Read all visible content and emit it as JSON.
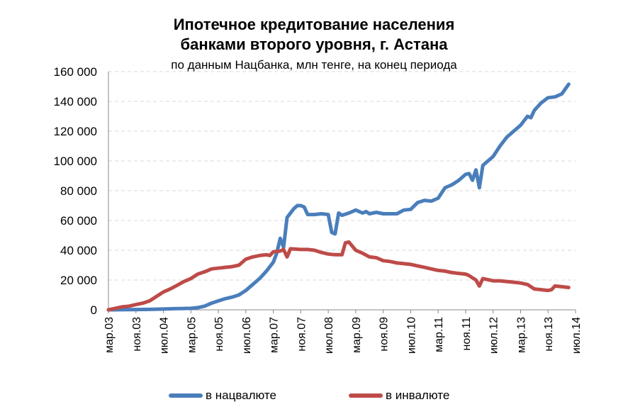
{
  "chart_data": {
    "type": "line",
    "title_line1": "Ипотечное кредитование населения",
    "title_line2": "банками второго уровня, г. Астана",
    "subtitle": "по данным Нацбанка, млн тенге, на конец периода",
    "xlabel": "",
    "ylabel": "",
    "ylim": [
      0,
      160000
    ],
    "yticks": [
      0,
      20000,
      40000,
      60000,
      80000,
      100000,
      120000,
      140000,
      160000
    ],
    "ytick_labels": [
      "0",
      "20 000",
      "40 000",
      "60 000",
      "80 000",
      "100 000",
      "120 000",
      "140 000",
      "160 000"
    ],
    "x_range": [
      0,
      136
    ],
    "xtick_positions": [
      0,
      8,
      16,
      24,
      32,
      40,
      48,
      56,
      64,
      72,
      80,
      88,
      96,
      104,
      112,
      120,
      128,
      136
    ],
    "xtick_labels": [
      "мар.03",
      "ноя.03",
      "июл.04",
      "мар.05",
      "ноя.05",
      "июл.06",
      "мар.07",
      "ноя.07",
      "июл.08",
      "мар.09",
      "ноя.09",
      "июл.10",
      "мар.11",
      "ноя.11",
      "июл.12",
      "мар.13",
      "ноя.13",
      "июл.14"
    ],
    "grid": true,
    "series": [
      {
        "name": "в нацвалюте",
        "color": "#4A7EBB",
        "points": [
          [
            0,
            0
          ],
          [
            8,
            200
          ],
          [
            12,
            300
          ],
          [
            16,
            500
          ],
          [
            20,
            800
          ],
          [
            24,
            1000
          ],
          [
            26,
            1500
          ],
          [
            28,
            2500
          ],
          [
            30,
            4500
          ],
          [
            32,
            6000
          ],
          [
            34,
            7500
          ],
          [
            36,
            8500
          ],
          [
            38,
            10000
          ],
          [
            40,
            13000
          ],
          [
            42,
            17000
          ],
          [
            44,
            21000
          ],
          [
            46,
            26000
          ],
          [
            48,
            32000
          ],
          [
            49,
            38000
          ],
          [
            50,
            48000
          ],
          [
            51,
            42000
          ],
          [
            52,
            62000
          ],
          [
            54,
            68000
          ],
          [
            55,
            70000
          ],
          [
            56,
            70000
          ],
          [
            57,
            69000
          ],
          [
            58,
            64000
          ],
          [
            60,
            64000
          ],
          [
            62,
            64500
          ],
          [
            64,
            64000
          ],
          [
            65,
            52000
          ],
          [
            66,
            51000
          ],
          [
            67,
            65000
          ],
          [
            68,
            63500
          ],
          [
            70,
            65000
          ],
          [
            72,
            67000
          ],
          [
            74,
            65000
          ],
          [
            75,
            66000
          ],
          [
            76,
            64500
          ],
          [
            78,
            65500
          ],
          [
            80,
            64500
          ],
          [
            82,
            64500
          ],
          [
            84,
            64500
          ],
          [
            86,
            67000
          ],
          [
            88,
            67500
          ],
          [
            90,
            72000
          ],
          [
            92,
            73500
          ],
          [
            94,
            73000
          ],
          [
            96,
            75000
          ],
          [
            98,
            82000
          ],
          [
            100,
            84000
          ],
          [
            102,
            87000
          ],
          [
            104,
            91000
          ],
          [
            105,
            91500
          ],
          [
            106,
            87000
          ],
          [
            107,
            94000
          ],
          [
            108,
            82000
          ],
          [
            109,
            97000
          ],
          [
            112,
            103000
          ],
          [
            114,
            110000
          ],
          [
            116,
            116000
          ],
          [
            118,
            120000
          ],
          [
            120,
            124000
          ],
          [
            122,
            130000
          ],
          [
            123,
            129000
          ],
          [
            124,
            134000
          ],
          [
            126,
            139000
          ],
          [
            128,
            142500
          ],
          [
            130,
            143000
          ],
          [
            132,
            145000
          ],
          [
            134,
            151500
          ]
        ]
      },
      {
        "name": "в инвалюте",
        "color": "#BE4B48",
        "points": [
          [
            0,
            0
          ],
          [
            2,
            1000
          ],
          [
            4,
            2000
          ],
          [
            6,
            2500
          ],
          [
            8,
            3500
          ],
          [
            10,
            4500
          ],
          [
            12,
            6000
          ],
          [
            14,
            9000
          ],
          [
            16,
            12000
          ],
          [
            18,
            14000
          ],
          [
            20,
            16500
          ],
          [
            22,
            19000
          ],
          [
            24,
            21000
          ],
          [
            26,
            24000
          ],
          [
            28,
            25500
          ],
          [
            30,
            27500
          ],
          [
            32,
            28000
          ],
          [
            34,
            28500
          ],
          [
            36,
            29000
          ],
          [
            38,
            30000
          ],
          [
            40,
            34000
          ],
          [
            42,
            35500
          ],
          [
            44,
            36500
          ],
          [
            46,
            37000
          ],
          [
            47,
            36500
          ],
          [
            48,
            39000
          ],
          [
            50,
            39500
          ],
          [
            51,
            40500
          ],
          [
            52,
            35500
          ],
          [
            53,
            41000
          ],
          [
            56,
            40500
          ],
          [
            58,
            40500
          ],
          [
            60,
            40000
          ],
          [
            62,
            38500
          ],
          [
            64,
            37500
          ],
          [
            66,
            37000
          ],
          [
            68,
            37000
          ],
          [
            69,
            45000
          ],
          [
            70,
            45500
          ],
          [
            72,
            40000
          ],
          [
            74,
            38000
          ],
          [
            76,
            35500
          ],
          [
            78,
            35000
          ],
          [
            80,
            33000
          ],
          [
            82,
            32500
          ],
          [
            84,
            31500
          ],
          [
            86,
            31000
          ],
          [
            88,
            30500
          ],
          [
            90,
            29500
          ],
          [
            92,
            28500
          ],
          [
            94,
            27500
          ],
          [
            96,
            26500
          ],
          [
            98,
            26000
          ],
          [
            100,
            25000
          ],
          [
            102,
            24500
          ],
          [
            104,
            24000
          ],
          [
            105,
            23000
          ],
          [
            106,
            21500
          ],
          [
            107,
            20000
          ],
          [
            108,
            16000
          ],
          [
            109,
            21000
          ],
          [
            112,
            19500
          ],
          [
            114,
            19500
          ],
          [
            116,
            19000
          ],
          [
            118,
            18500
          ],
          [
            120,
            18000
          ],
          [
            122,
            17000
          ],
          [
            124,
            14000
          ],
          [
            126,
            13500
          ],
          [
            128,
            13000
          ],
          [
            129,
            13500
          ],
          [
            130,
            16000
          ],
          [
            132,
            15500
          ],
          [
            134,
            15000
          ]
        ]
      }
    ]
  }
}
